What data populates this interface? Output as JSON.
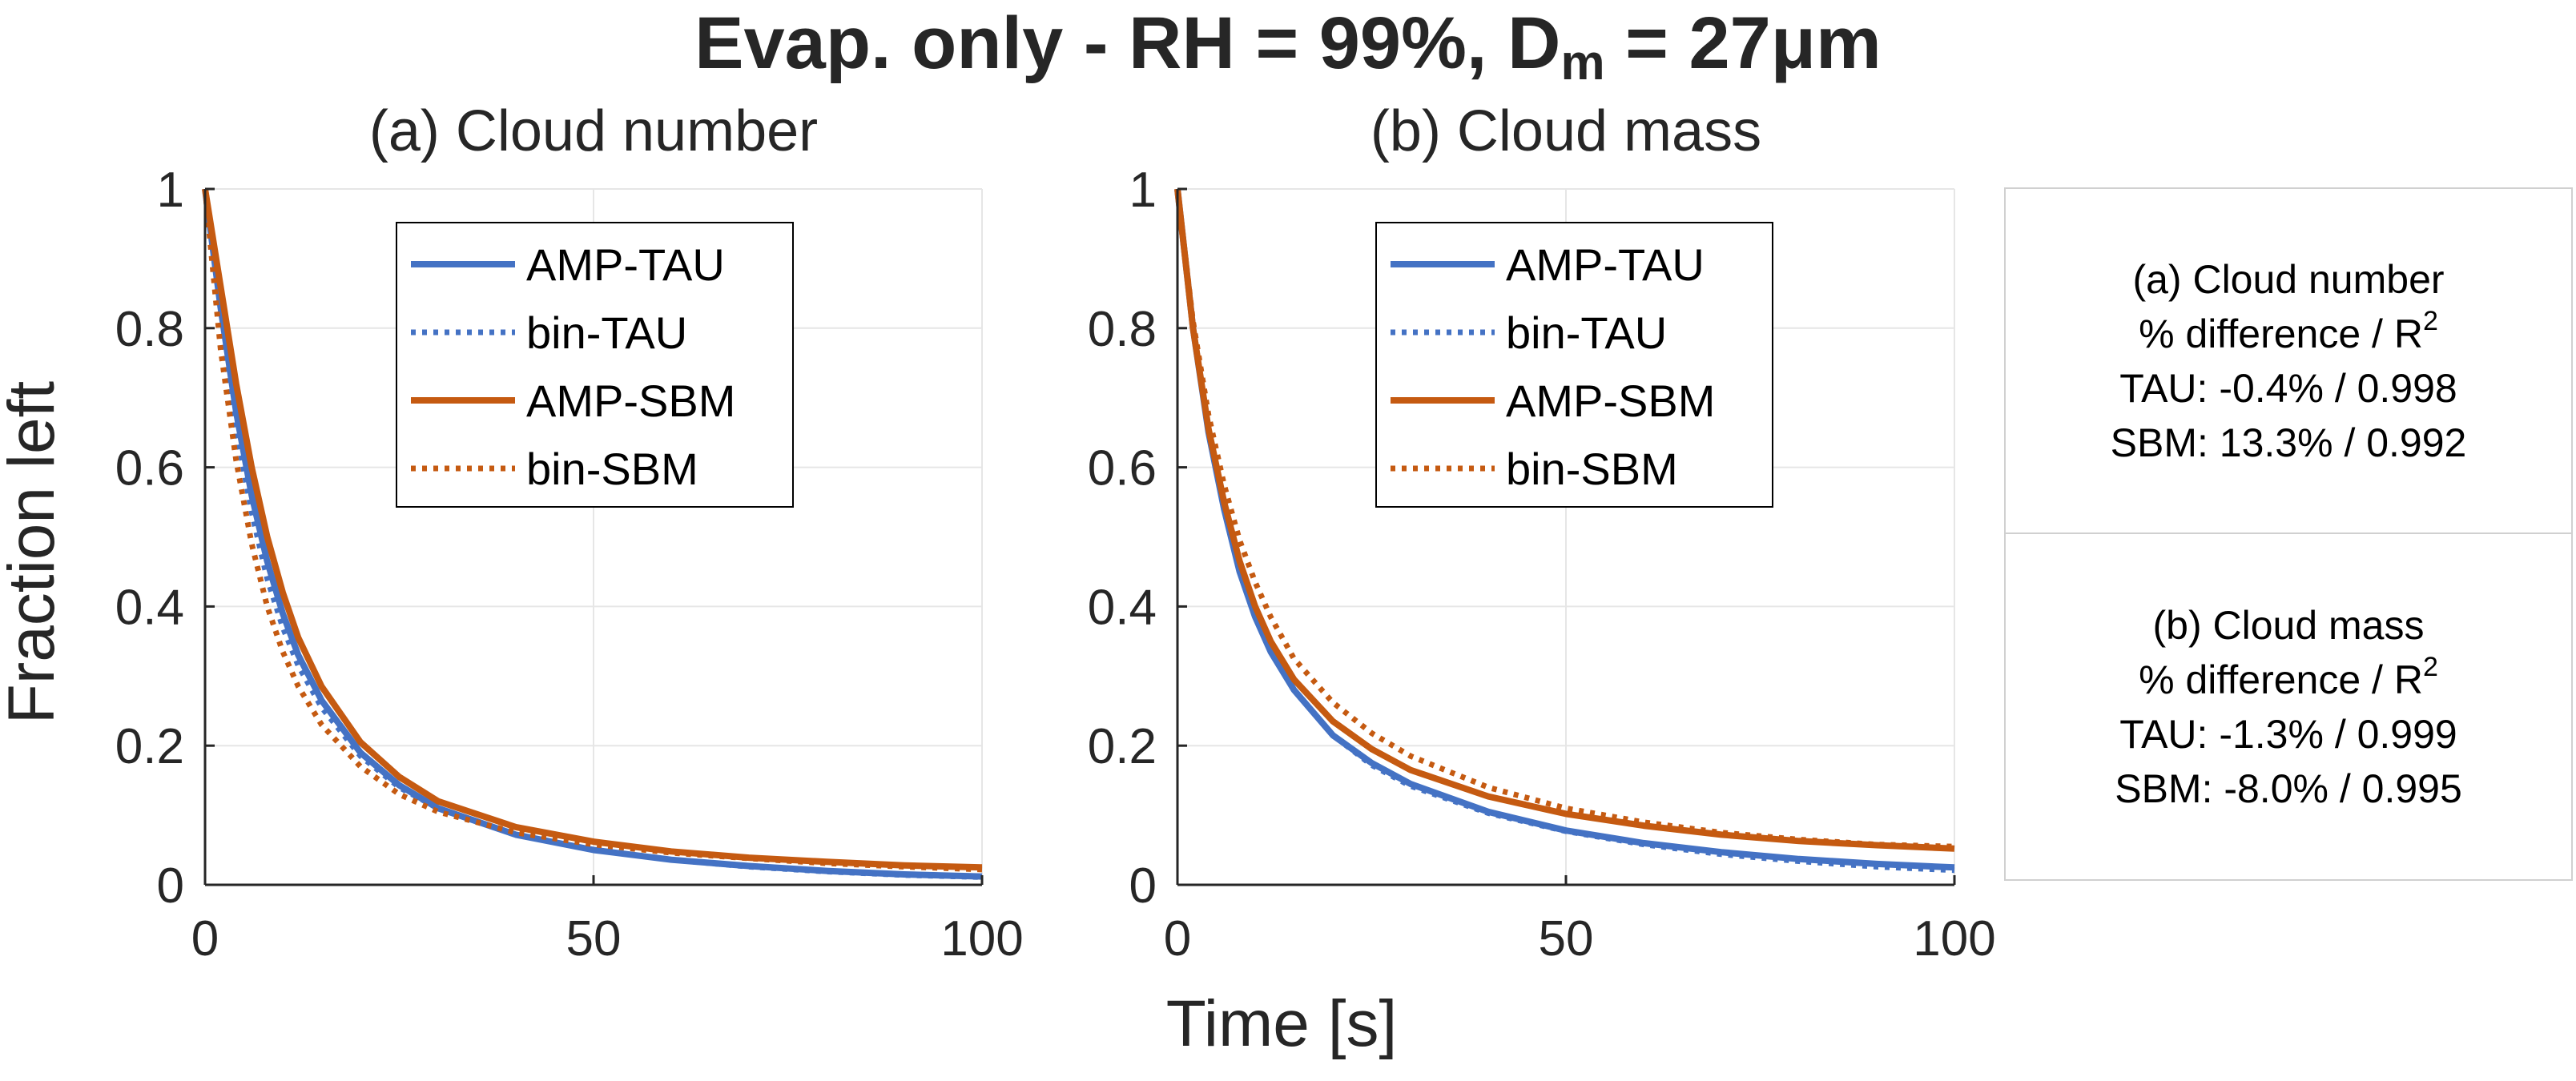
{
  "figure": {
    "title_main": "Evap. only - RH = 99%, D",
    "title_sub": "m",
    "title_tail": " = 27μm",
    "ylabel": "Fraction left",
    "xlabel": "Time [s]"
  },
  "colors": {
    "tau": "#4472C4",
    "sbm": "#C55A11",
    "grid": "#e6e6e6",
    "axis": "#262626",
    "box_border": "#d0d0d0"
  },
  "chart_data": [
    {
      "type": "line",
      "title": "(a) Cloud number",
      "xlabel": "",
      "ylabel": "Fraction left",
      "xlim": [
        0,
        100
      ],
      "ylim": [
        0,
        1
      ],
      "xticks": [
        "0",
        "50",
        "100"
      ],
      "yticks": [
        "0",
        "0.2",
        "0.4",
        "0.6",
        "0.8",
        "1"
      ],
      "grid": true,
      "legend_position": "top-center",
      "x": [
        0,
        2,
        4,
        6,
        8,
        10,
        12,
        15,
        20,
        25,
        30,
        40,
        50,
        60,
        70,
        80,
        90,
        100
      ],
      "series": [
        {
          "name": "AMP-TAU",
          "style": "solid",
          "color_key": "tau",
          "values": [
            1.0,
            0.83,
            0.68,
            0.56,
            0.465,
            0.39,
            0.33,
            0.265,
            0.19,
            0.143,
            0.11,
            0.072,
            0.05,
            0.036,
            0.027,
            0.02,
            0.015,
            0.012
          ]
        },
        {
          "name": "bin-TAU",
          "style": "dotted",
          "color_key": "tau",
          "values": [
            1.0,
            0.81,
            0.655,
            0.535,
            0.44,
            0.37,
            0.315,
            0.255,
            0.185,
            0.14,
            0.11,
            0.072,
            0.05,
            0.036,
            0.026,
            0.019,
            0.014,
            0.011
          ]
        },
        {
          "name": "AMP-SBM",
          "style": "solid",
          "color_key": "sbm",
          "values": [
            1.0,
            0.86,
            0.72,
            0.6,
            0.5,
            0.42,
            0.355,
            0.285,
            0.205,
            0.155,
            0.12,
            0.083,
            0.062,
            0.048,
            0.039,
            0.033,
            0.028,
            0.025
          ]
        },
        {
          "name": "bin-SBM",
          "style": "dotted",
          "color_key": "sbm",
          "values": [
            1.0,
            0.77,
            0.61,
            0.49,
            0.4,
            0.335,
            0.285,
            0.23,
            0.17,
            0.13,
            0.105,
            0.075,
            0.058,
            0.046,
            0.038,
            0.031,
            0.026,
            0.022
          ]
        }
      ]
    },
    {
      "type": "line",
      "title": "(b) Cloud mass",
      "xlabel": "",
      "ylabel": "",
      "xlim": [
        0,
        100
      ],
      "ylim": [
        0,
        1
      ],
      "xticks": [
        "0",
        "50",
        "100"
      ],
      "yticks": [
        "0",
        "0.2",
        "0.4",
        "0.6",
        "0.8",
        "1"
      ],
      "grid": true,
      "legend_position": "top-center",
      "x": [
        0,
        2,
        4,
        6,
        8,
        10,
        12,
        15,
        20,
        25,
        30,
        40,
        50,
        60,
        70,
        80,
        90,
        100
      ],
      "series": [
        {
          "name": "AMP-TAU",
          "style": "solid",
          "color_key": "tau",
          "values": [
            1.0,
            0.8,
            0.65,
            0.54,
            0.45,
            0.385,
            0.335,
            0.28,
            0.215,
            0.175,
            0.145,
            0.105,
            0.078,
            0.06,
            0.047,
            0.037,
            0.03,
            0.025
          ]
        },
        {
          "name": "bin-TAU",
          "style": "dotted",
          "color_key": "tau",
          "values": [
            1.0,
            0.8,
            0.65,
            0.54,
            0.45,
            0.385,
            0.335,
            0.28,
            0.215,
            0.172,
            0.142,
            0.103,
            0.077,
            0.058,
            0.044,
            0.034,
            0.026,
            0.021
          ]
        },
        {
          "name": "AMP-SBM",
          "style": "solid",
          "color_key": "sbm",
          "values": [
            1.0,
            0.8,
            0.655,
            0.55,
            0.465,
            0.4,
            0.35,
            0.295,
            0.235,
            0.195,
            0.165,
            0.127,
            0.102,
            0.085,
            0.072,
            0.063,
            0.057,
            0.052
          ]
        },
        {
          "name": "bin-SBM",
          "style": "dotted",
          "color_key": "sbm",
          "values": [
            1.0,
            0.81,
            0.675,
            0.575,
            0.495,
            0.435,
            0.385,
            0.325,
            0.262,
            0.218,
            0.185,
            0.14,
            0.11,
            0.09,
            0.075,
            0.065,
            0.058,
            0.055
          ]
        }
      ]
    }
  ],
  "stats": [
    {
      "heading": "(a) Cloud number",
      "metric_label": "% difference / R",
      "metric_sup": "2",
      "lines": [
        "TAU: -0.4% / 0.998",
        "SBM: 13.3% / 0.992"
      ]
    },
    {
      "heading": "(b) Cloud mass",
      "metric_label": "% difference / R",
      "metric_sup": "2",
      "lines": [
        "TAU: -1.3% / 0.999",
        "SBM: -8.0% / 0.995"
      ]
    }
  ]
}
